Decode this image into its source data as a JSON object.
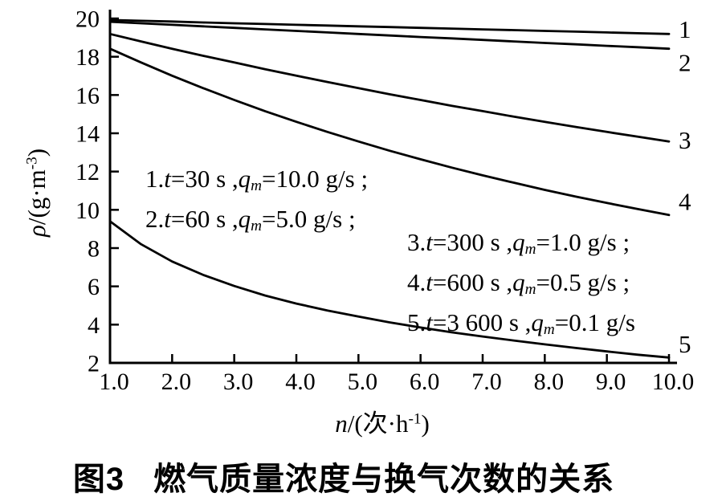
{
  "figure": {
    "caption_prefix": "图3",
    "caption_title": "燃气质量浓度与换气次数的关系"
  },
  "chart_data": {
    "type": "line",
    "title": "",
    "xlabel": "n/(次·h-1)",
    "ylabel": "ρ/(g·m-3)",
    "xlabel_segments": [
      {
        "t": "n",
        "s": "i"
      },
      {
        "t": "/(次·h",
        "s": "n"
      },
      {
        "t": "-1",
        "s": "sup"
      },
      {
        "t": ")",
        "s": "n"
      }
    ],
    "ylabel_segments": [
      {
        "t": "ρ",
        "s": "i"
      },
      {
        "t": "/(g·m",
        "s": "n"
      },
      {
        "t": "-3",
        "s": "sup"
      },
      {
        "t": ")",
        "s": "n"
      }
    ],
    "xlim": [
      1.0,
      10.0
    ],
    "ylim": [
      2,
      20
    ],
    "grid": false,
    "line_color": "#000000",
    "background": "#ffffff",
    "x_tick_values": [
      1,
      2,
      3,
      4,
      5,
      6,
      7,
      8,
      9,
      10
    ],
    "x_tick_labels": [
      "1.0",
      "2.0",
      "3.0",
      "4.0",
      "5.0",
      "6.0",
      "7.0",
      "8.0",
      "9.0",
      "10.0"
    ],
    "y_tick_values": [
      20,
      18,
      16,
      14,
      12,
      10,
      8,
      6,
      4,
      2
    ],
    "y_tick_labels": [
      "20",
      "18",
      "16",
      "14",
      "12",
      "10",
      "8",
      "6",
      "4",
      "2"
    ],
    "x_start": 1.0,
    "x_step": 0.5,
    "series": [
      {
        "name": "1",
        "definition": "t=30 s, qm=10.0 g/s",
        "values": [
          19.92,
          19.88,
          19.84,
          19.79,
          19.75,
          19.71,
          19.67,
          19.63,
          19.59,
          19.55,
          19.51,
          19.47,
          19.43,
          19.39,
          19.35,
          19.31,
          19.27,
          19.23,
          19.19
        ],
        "label_dy": -6
      },
      {
        "name": "2",
        "definition": "t=60 s, qm=5.0 g/s",
        "values": [
          19.83,
          19.75,
          19.67,
          19.59,
          19.51,
          19.43,
          19.35,
          19.27,
          19.19,
          19.11,
          19.03,
          18.96,
          18.88,
          18.8,
          18.72,
          18.65,
          18.57,
          18.5,
          18.42
        ],
        "label_dy": 17
      },
      {
        "name": "3",
        "definition": "t=300 s, qm=1.0 g/s",
        "values": [
          19.19,
          18.8,
          18.42,
          18.05,
          17.7,
          17.35,
          17.01,
          16.68,
          16.36,
          16.04,
          15.74,
          15.44,
          15.16,
          14.87,
          14.6,
          14.33,
          14.07,
          13.82,
          13.57
        ],
        "label_dy": -2
      },
      {
        "name": "4",
        "definition": "t=600 s, qm=0.5 g/s",
        "values": [
          18.42,
          17.7,
          17.01,
          16.36,
          15.74,
          15.15,
          14.6,
          14.07,
          13.57,
          13.09,
          12.64,
          12.21,
          11.8,
          11.42,
          11.04,
          10.69,
          10.36,
          10.04,
          9.73
        ],
        "label_dy": -17
      },
      {
        "name": "5",
        "definition": "t=3 600 s, qm=0.1 g/s",
        "values": [
          9.4,
          8.2,
          7.3,
          6.6,
          6.02,
          5.52,
          5.1,
          4.74,
          4.42,
          4.12,
          3.85,
          3.6,
          3.38,
          3.17,
          2.97,
          2.78,
          2.6,
          2.43,
          2.28
        ],
        "label_dy": -17
      }
    ],
    "annotations": [
      {
        "x": 181,
        "y": 202,
        "lines": [
          {
            "plain": "1.t=30 s,qm=10.0 g/s;",
            "segs": [
              {
                "t": "1.",
                "s": "n"
              },
              {
                "t": "t",
                "s": "i"
              },
              {
                "t": "=30 s ,",
                "s": "n"
              },
              {
                "t": "q",
                "s": "i"
              },
              {
                "t": "m",
                "s": "sub"
              },
              {
                "t": "=10.0 g/s ;",
                "s": "n"
              }
            ]
          },
          {
            "plain": "2.t=60 s,qm=5.0 g/s;",
            "segs": [
              {
                "t": "2.",
                "s": "n"
              },
              {
                "t": "t",
                "s": "i"
              },
              {
                "t": "=60 s ,",
                "s": "n"
              },
              {
                "t": "q",
                "s": "i"
              },
              {
                "t": "m",
                "s": "sub"
              },
              {
                "t": "=5.0 g/s ;",
                "s": "n"
              }
            ]
          }
        ]
      },
      {
        "x": 507,
        "y": 281,
        "lines": [
          {
            "plain": "3.t=300 s,qm=1.0 g/s;",
            "segs": [
              {
                "t": "3.",
                "s": "n"
              },
              {
                "t": "t",
                "s": "i"
              },
              {
                "t": "=300 s ,",
                "s": "n"
              },
              {
                "t": "q",
                "s": "i"
              },
              {
                "t": "m",
                "s": "sub"
              },
              {
                "t": "=1.0 g/s ;",
                "s": "n"
              }
            ]
          },
          {
            "plain": "4.t=600 s,qm=0.5 g/s;",
            "segs": [
              {
                "t": "4.",
                "s": "n"
              },
              {
                "t": "t",
                "s": "i"
              },
              {
                "t": "=600 s ,",
                "s": "n"
              },
              {
                "t": "q",
                "s": "i"
              },
              {
                "t": "m",
                "s": "sub"
              },
              {
                "t": "=0.5 g/s ;",
                "s": "n"
              }
            ]
          },
          {
            "plain": "5.t=3 600 s,qm=0.1 g/s",
            "segs": [
              {
                "t": "5.",
                "s": "n"
              },
              {
                "t": "t",
                "s": "i"
              },
              {
                "t": "=3 600 s ,",
                "s": "n"
              },
              {
                "t": "q",
                "s": "i"
              },
              {
                "t": "m",
                "s": "sub"
              },
              {
                "t": "=0.1 g/s",
                "s": "n"
              }
            ]
          }
        ]
      }
    ]
  }
}
